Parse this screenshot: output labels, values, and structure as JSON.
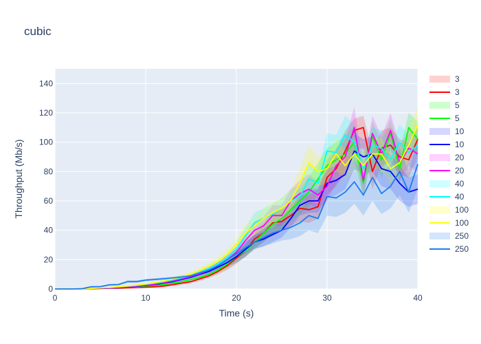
{
  "chart_data": {
    "type": "line",
    "title": "cubic",
    "xlabel": "Time (s)",
    "ylabel": "Throughput (Mb/s)",
    "xlim": [
      0,
      40
    ],
    "ylim": [
      0,
      150
    ],
    "xticks": [
      0,
      10,
      20,
      30,
      40
    ],
    "yticks": [
      0,
      20,
      40,
      60,
      80,
      100,
      120,
      140
    ],
    "grid": true,
    "legend_position": "right",
    "plot_background": "#e5ecf6",
    "x": [
      0,
      1,
      2,
      3,
      4,
      5,
      6,
      7,
      8,
      9,
      10,
      11,
      12,
      13,
      14,
      15,
      16,
      17,
      18,
      19,
      20,
      21,
      22,
      23,
      24,
      25,
      26,
      27,
      28,
      29,
      30,
      31,
      32,
      33,
      34,
      35,
      36,
      37,
      38,
      39,
      40
    ],
    "series": [
      {
        "name": "3",
        "color": "#ff0000",
        "band_color": "rgba(255,0,0,0.18)",
        "band_legend": "3",
        "values": [
          0,
          0,
          0,
          0,
          0.2,
          0.3,
          0.5,
          0.6,
          0.8,
          1,
          1.2,
          1.5,
          2,
          3,
          4,
          5,
          7,
          9,
          12,
          16,
          21,
          26,
          34,
          38,
          45,
          46,
          50,
          55,
          54,
          56,
          76,
          82,
          94,
          108,
          110,
          80,
          96,
          98,
          90,
          88,
          102
        ],
        "lower": [
          0,
          0,
          0,
          0,
          0,
          0,
          0,
          0,
          0.2,
          0.4,
          0.6,
          0.9,
          1.3,
          2,
          3,
          4,
          5.5,
          7.5,
          10,
          13,
          17,
          22,
          28,
          32,
          38,
          40,
          43,
          46,
          45,
          48,
          64,
          70,
          80,
          94,
          96,
          68,
          84,
          86,
          78,
          76,
          90
        ],
        "upper": [
          0,
          0,
          0,
          0,
          0.4,
          0.6,
          1,
          1.2,
          1.4,
          1.6,
          1.8,
          2.1,
          2.7,
          4,
          5,
          6.5,
          8.5,
          11,
          14,
          19,
          25,
          31,
          40,
          45,
          52,
          54,
          58,
          64,
          64,
          68,
          88,
          95,
          108,
          116,
          118,
          94,
          108,
          110,
          102,
          100,
          112
        ]
      },
      {
        "name": "5",
        "color": "#00ff00",
        "band_color": "rgba(0,255,0,0.2)",
        "band_legend": "5",
        "values": [
          0,
          0,
          0,
          0.2,
          0.3,
          0.5,
          0.8,
          1,
          1.2,
          1.5,
          2,
          2.4,
          3,
          4,
          5,
          6.5,
          8,
          10,
          13,
          17,
          22,
          26,
          32,
          38,
          44,
          48,
          54,
          60,
          66,
          75,
          84,
          88,
          92,
          100,
          72,
          104,
          88,
          106,
          82,
          110,
          102
        ],
        "lower": [
          0,
          0,
          0,
          0,
          0,
          0.2,
          0.4,
          0.6,
          0.8,
          1,
          1.4,
          1.8,
          2.3,
          3,
          4,
          5,
          6.5,
          8,
          11,
          14,
          18,
          22,
          27,
          32,
          37,
          41,
          46,
          51,
          56,
          64,
          72,
          76,
          80,
          88,
          62,
          92,
          76,
          94,
          72,
          98,
          90
        ],
        "upper": [
          0,
          0,
          0,
          0.4,
          0.6,
          0.8,
          1.2,
          1.4,
          1.6,
          2,
          2.6,
          3,
          3.7,
          5,
          6,
          8,
          9.5,
          12,
          15,
          20,
          26,
          30,
          37,
          44,
          51,
          55,
          62,
          69,
          76,
          86,
          96,
          100,
          104,
          112,
          84,
          114,
          100,
          116,
          94,
          120,
          114
        ]
      },
      {
        "name": "10",
        "color": "#0000ff",
        "band_color": "rgba(0,0,255,0.16)",
        "band_legend": "10",
        "values": [
          0,
          0,
          0,
          0,
          0.2,
          0.4,
          0.6,
          1,
          1.4,
          1.8,
          2.4,
          3,
          4,
          5,
          6.5,
          8,
          10,
          12,
          15,
          18,
          22,
          27,
          32,
          34,
          37,
          40,
          48,
          57,
          60,
          60,
          72,
          74,
          78,
          94,
          90,
          92,
          82,
          80,
          72,
          66,
          68
        ],
        "lower": [
          0,
          0,
          0,
          0,
          0,
          0,
          0.2,
          0.5,
          0.8,
          1.2,
          1.7,
          2.2,
          3,
          3.8,
          5,
          6.2,
          8,
          9.6,
          12,
          15,
          18,
          22,
          27,
          29,
          32,
          35,
          42,
          50,
          52,
          52,
          62,
          64,
          68,
          82,
          78,
          80,
          70,
          68,
          60,
          56,
          58
        ],
        "upper": [
          0,
          0,
          0,
          0,
          0.4,
          0.8,
          1,
          1.5,
          2,
          2.4,
          3.1,
          3.8,
          5,
          6.2,
          8,
          9.8,
          12,
          14.4,
          18,
          21,
          26,
          32,
          37,
          39,
          42,
          46,
          55,
          64,
          68,
          68,
          82,
          84,
          88,
          106,
          102,
          104,
          94,
          92,
          84,
          76,
          78
        ]
      },
      {
        "name": "20",
        "color": "#ff00ff",
        "band_color": "rgba(255,0,255,0.18)",
        "band_legend": "20",
        "values": [
          0,
          0,
          0,
          0,
          0.3,
          0.5,
          0.8,
          1.2,
          1.6,
          2,
          2.6,
          3.3,
          4.3,
          5.5,
          7,
          8.6,
          10.5,
          13,
          16,
          20,
          25,
          33,
          40,
          43,
          50,
          50,
          60,
          65,
          68,
          64,
          70,
          84,
          90,
          110,
          74,
          106,
          92,
          108,
          86,
          96,
          92
        ],
        "lower": [
          0,
          0,
          0,
          0,
          0,
          0.2,
          0.4,
          0.8,
          1.1,
          1.4,
          2,
          2.6,
          3.4,
          4.5,
          5.8,
          7.2,
          8.8,
          11,
          13.5,
          17,
          21,
          28,
          34,
          37,
          43,
          43,
          52,
          56,
          58,
          55,
          60,
          72,
          78,
          96,
          64,
          94,
          80,
          96,
          74,
          84,
          80
        ],
        "upper": [
          0,
          0,
          0,
          0,
          0.6,
          0.8,
          1.2,
          1.6,
          2.1,
          2.6,
          3.2,
          4,
          5.2,
          6.5,
          8.2,
          10,
          12.2,
          15,
          18.5,
          23,
          29,
          38,
          46,
          49,
          57,
          57,
          68,
          74,
          78,
          73,
          80,
          96,
          102,
          124,
          84,
          118,
          104,
          120,
          98,
          108,
          104
        ]
      },
      {
        "name": "40",
        "color": "#00ffff",
        "band_color": "rgba(0,255,255,0.2)",
        "band_legend": "40",
        "values": [
          0,
          0,
          0,
          0,
          0.4,
          0.7,
          1,
          1.4,
          1.9,
          2.5,
          3.2,
          4,
          5,
          6.2,
          7.6,
          9.2,
          11.4,
          14,
          17,
          21,
          27,
          36,
          45,
          48,
          51,
          55,
          60,
          63,
          75,
          72,
          94,
          93,
          105,
          100,
          82,
          98,
          96,
          88,
          100,
          93,
          98
        ],
        "lower": [
          0,
          0,
          0,
          0,
          0,
          0.3,
          0.6,
          1,
          1.4,
          1.9,
          2.5,
          3.2,
          4,
          5,
          6.2,
          7.6,
          9.4,
          11.6,
          14.2,
          17.6,
          22.6,
          30,
          38,
          41,
          44,
          48,
          52,
          55,
          65,
          63,
          82,
          81,
          92,
          88,
          72,
          86,
          84,
          76,
          88,
          81,
          86
        ],
        "upper": [
          0,
          0,
          0,
          0,
          0.8,
          1.1,
          1.4,
          1.8,
          2.4,
          3.1,
          3.9,
          4.8,
          6,
          7.4,
          9,
          10.8,
          13.4,
          16.4,
          19.8,
          24.4,
          31.4,
          42,
          52,
          55,
          58,
          62,
          68,
          71,
          85,
          81,
          106,
          105,
          118,
          112,
          92,
          110,
          108,
          100,
          112,
          105,
          110
        ]
      },
      {
        "name": "100",
        "color": "#ffff00",
        "band_color": "rgba(255,255,0,0.2)",
        "band_legend": "100",
        "values": [
          0,
          0,
          0,
          0,
          0.4,
          0.7,
          1,
          1.5,
          2,
          2.6,
          3.4,
          4.3,
          5.4,
          6.8,
          8.4,
          10.2,
          12.6,
          15.5,
          19,
          23.5,
          30,
          38,
          43,
          48,
          52,
          55,
          60,
          72,
          86,
          80,
          82,
          92,
          84,
          92,
          84,
          92,
          92,
          82,
          86,
          98,
          112
        ],
        "lower": [
          0,
          0,
          0,
          0,
          0,
          0.3,
          0.6,
          1,
          1.5,
          2,
          2.7,
          3.5,
          4.4,
          5.6,
          7,
          8.5,
          10.6,
          13,
          16,
          20,
          25.6,
          32,
          37,
          41,
          45,
          48,
          52,
          62,
          74,
          70,
          72,
          81,
          74,
          81,
          74,
          81,
          81,
          72,
          76,
          87,
          100
        ],
        "upper": [
          0,
          0,
          0,
          0,
          0.8,
          1.1,
          1.4,
          2,
          2.5,
          3.2,
          4.1,
          5.1,
          6.4,
          8,
          9.8,
          11.9,
          14.6,
          18,
          22,
          27,
          34.4,
          44,
          49,
          55,
          59,
          62,
          68,
          82,
          98,
          90,
          92,
          103,
          94,
          103,
          94,
          103,
          103,
          92,
          96,
          109,
          124
        ]
      },
      {
        "name": "250",
        "color": "#1e7bef",
        "band_color": "rgba(30,123,239,0.2)",
        "band_legend": "250",
        "values": [
          0,
          0,
          0,
          0.2,
          1.5,
          1.6,
          2.8,
          3,
          5,
          5,
          6,
          6.5,
          7,
          7.5,
          8.2,
          9,
          11,
          13,
          16,
          20,
          24,
          28,
          32,
          35,
          38,
          40,
          42,
          45,
          50,
          48,
          63,
          62,
          66,
          73,
          64,
          76,
          65,
          70,
          80,
          66,
          85
        ],
        "lower": [
          0,
          0,
          0,
          0,
          1,
          1.1,
          2.2,
          2.4,
          4.2,
          4.2,
          5.2,
          5.6,
          6.1,
          6.5,
          7.1,
          7.8,
          9.5,
          11.2,
          13.8,
          17.2,
          20.5,
          24,
          27.5,
          29,
          31,
          33,
          34,
          36,
          40,
          38,
          50,
          49,
          52,
          58,
          50,
          60,
          51,
          55,
          64,
          52,
          68
        ],
        "upper": [
          0,
          0,
          0,
          0.4,
          2,
          2.1,
          3.4,
          3.6,
          5.8,
          5.8,
          6.8,
          7.4,
          7.9,
          8.5,
          9.3,
          10.2,
          12.5,
          14.8,
          18.2,
          22.8,
          27.5,
          32,
          36.5,
          41,
          45,
          47,
          50,
          54,
          60,
          58,
          76,
          75,
          80,
          88,
          78,
          92,
          79,
          85,
          96,
          80,
          102
        ]
      }
    ]
  }
}
